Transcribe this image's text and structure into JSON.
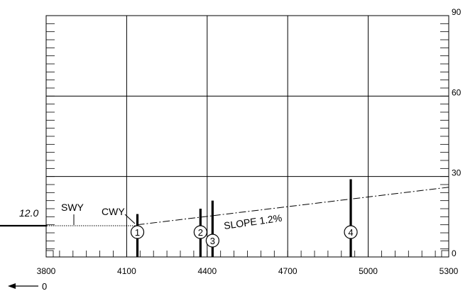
{
  "chart_data": {
    "type": "profile",
    "x_axis": {
      "ticks": [
        "3800",
        "4100",
        "4400",
        "4700",
        "5000",
        "5300"
      ],
      "range": [
        3800,
        5300
      ],
      "origin_label": "0"
    },
    "y_axis_right": {
      "ticks": [
        "0",
        "30",
        "60",
        "90"
      ],
      "range": [
        0,
        90
      ]
    },
    "grid": true,
    "elevation_label": "12.0",
    "labels": {
      "swy": "SWY",
      "cwy": "CWY",
      "slope": "SLOPE 1.2%"
    },
    "runway_end_x": 4140,
    "slope_line": {
      "x": [
        4140,
        5300
      ],
      "y": [
        12,
        26
      ]
    },
    "obstacles": [
      {
        "id": "1",
        "x": 4140,
        "height": 16
      },
      {
        "id": "2",
        "x": 4375,
        "height": 18
      },
      {
        "id": "3",
        "x": 4420,
        "height": 21
      },
      {
        "id": "4",
        "x": 4935,
        "height": 29
      }
    ]
  }
}
